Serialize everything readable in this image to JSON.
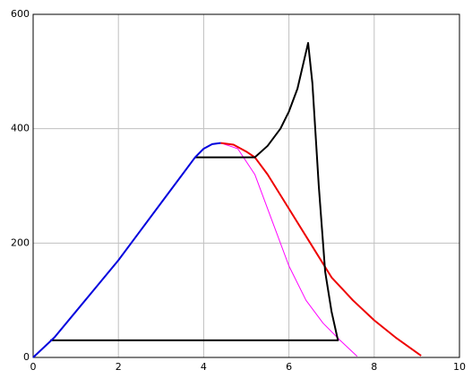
{
  "chart_data": {
    "type": "line",
    "xlim": [
      0,
      10
    ],
    "xticks": [
      0,
      2,
      4,
      6,
      8,
      10
    ],
    "ylim": [
      0,
      600
    ],
    "yticks": [
      0,
      200,
      400,
      600
    ],
    "grid": true,
    "series": [
      {
        "color": "#ff00ff",
        "x": [
          4.4,
          4.8,
          5.2,
          5.6,
          6.0,
          6.4,
          6.8,
          7.2,
          7.6
        ],
        "values": [
          375,
          365,
          320,
          240,
          160,
          100,
          60,
          30,
          2
        ]
      },
      {
        "color": "#ee0000",
        "x": [
          4.4,
          4.7,
          5.0,
          5.2,
          5.5,
          6.0,
          6.5,
          7.0,
          7.5,
          8.0,
          8.5,
          9.1
        ],
        "values": [
          375,
          372,
          360,
          350,
          320,
          260,
          200,
          140,
          100,
          65,
          35,
          3
        ]
      },
      {
        "color": "#000000",
        "x": [
          3.8,
          5.2,
          5.5,
          5.8,
          6.0,
          6.2,
          6.45,
          6.55,
          6.7,
          6.85,
          7.0,
          7.15,
          0.4
        ],
        "values": [
          350,
          350,
          370,
          400,
          430,
          470,
          550,
          480,
          300,
          150,
          80,
          30,
          30
        ]
      },
      {
        "color": "#0000dd",
        "x": [
          0,
          0.5,
          1,
          1.5,
          2,
          2.5,
          3,
          3.5,
          3.8,
          4.0,
          4.2,
          4.4
        ],
        "values": [
          0,
          35,
          80,
          125,
          170,
          220,
          270,
          320,
          350,
          365,
          373,
          375
        ]
      }
    ]
  }
}
